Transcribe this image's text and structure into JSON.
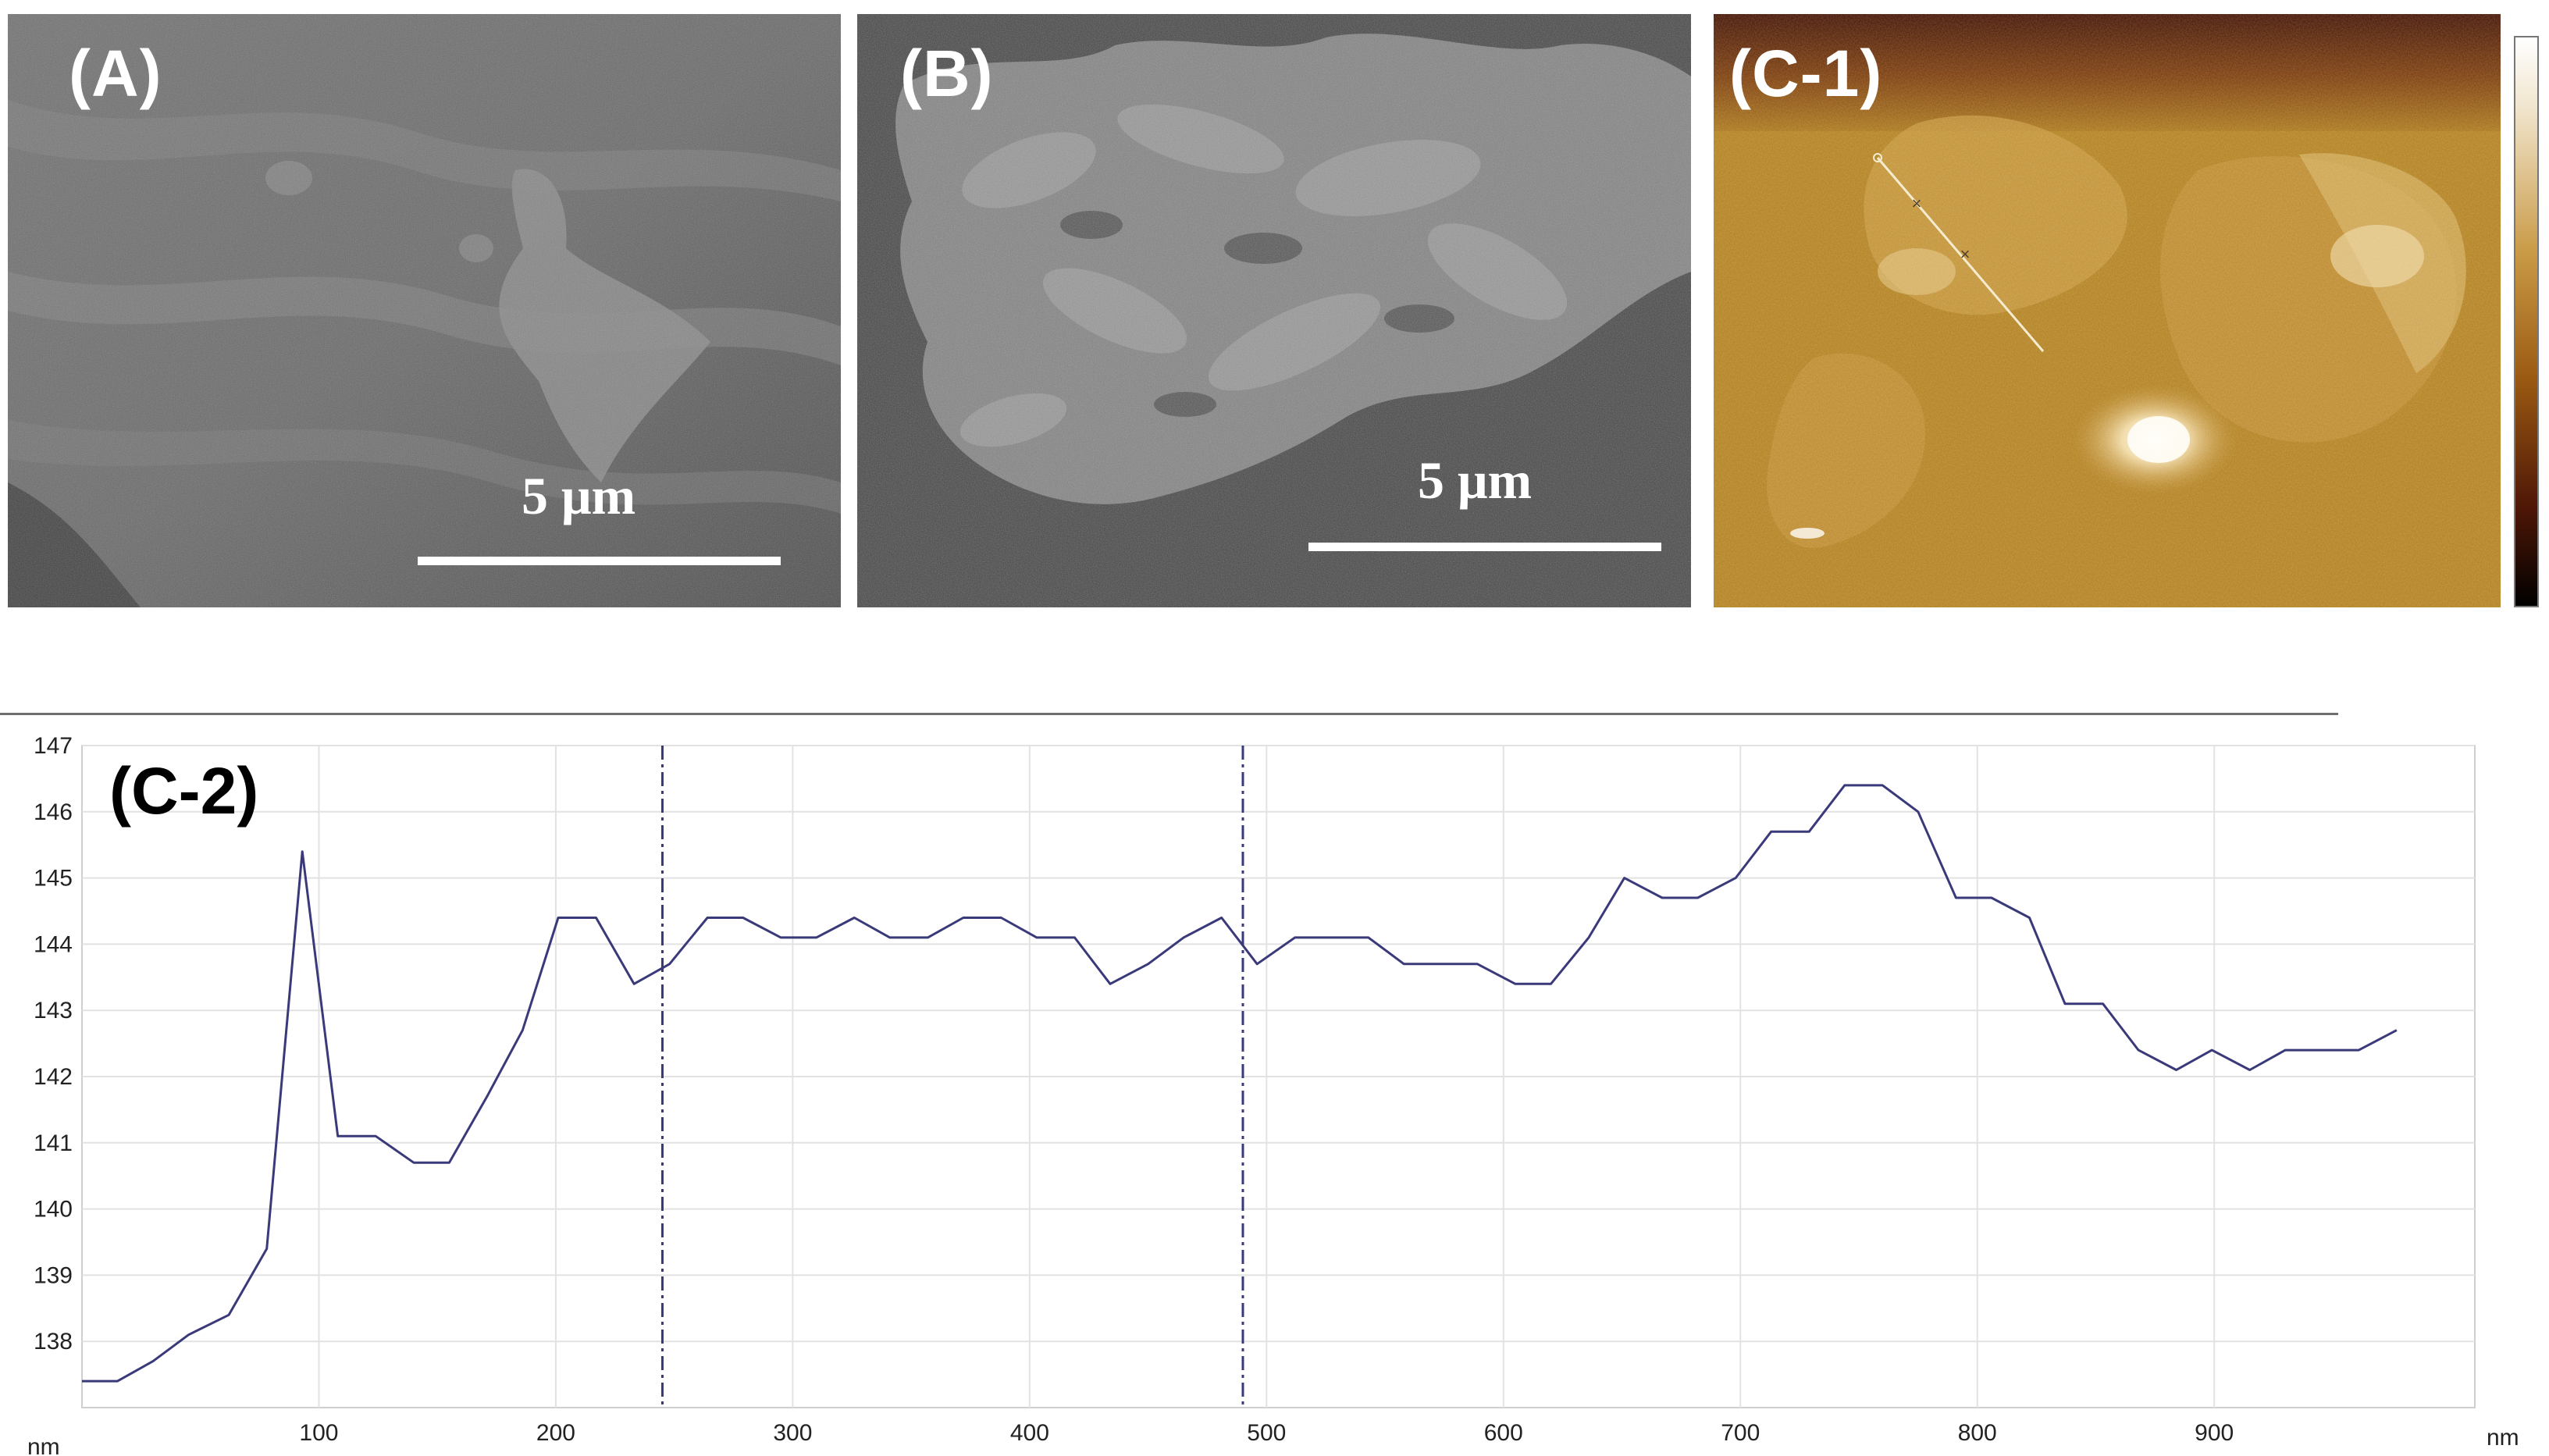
{
  "panels": {
    "a": {
      "label": "(A)",
      "scale_label": "5 μm"
    },
    "b": {
      "label": "(B)",
      "scale_label": "5 μm"
    },
    "c1": {
      "label": "(C-1)"
    },
    "c2": {
      "label": "(C-2)"
    }
  },
  "chart_data": {
    "type": "line",
    "title": "",
    "xlabel": "nm",
    "ylabel": "nm",
    "xlim": [
      0,
      1010
    ],
    "ylim": [
      137,
      147
    ],
    "x_ticks": [
      100,
      200,
      300,
      400,
      500,
      600,
      700,
      800,
      900
    ],
    "y_ticks": [
      138,
      139,
      140,
      141,
      142,
      143,
      144,
      145,
      146,
      147
    ],
    "grid": true,
    "markers": [
      245,
      490
    ],
    "series": [
      {
        "color": "#3a3a7a",
        "points": [
          [
            0,
            137.4
          ],
          [
            15,
            137.4
          ],
          [
            30,
            137.7
          ],
          [
            45,
            138.1
          ],
          [
            62,
            138.4
          ],
          [
            78,
            139.4
          ],
          [
            93,
            145.4
          ],
          [
            108,
            141.1
          ],
          [
            124,
            141.1
          ],
          [
            140,
            140.7
          ],
          [
            155,
            140.7
          ],
          [
            171,
            141.7
          ],
          [
            186,
            142.7
          ],
          [
            201,
            144.4
          ],
          [
            217,
            144.4
          ],
          [
            233,
            143.4
          ],
          [
            248,
            143.7
          ],
          [
            264,
            144.4
          ],
          [
            279,
            144.4
          ],
          [
            295,
            144.1
          ],
          [
            310,
            144.1
          ],
          [
            326,
            144.4
          ],
          [
            341,
            144.1
          ],
          [
            357,
            144.1
          ],
          [
            372,
            144.4
          ],
          [
            388,
            144.4
          ],
          [
            403,
            144.1
          ],
          [
            419,
            144.1
          ],
          [
            434,
            143.4
          ],
          [
            450,
            143.7
          ],
          [
            465,
            144.1
          ],
          [
            481,
            144.4
          ],
          [
            496,
            143.7
          ],
          [
            512,
            144.1
          ],
          [
            527,
            144.1
          ],
          [
            543,
            144.1
          ],
          [
            558,
            143.7
          ],
          [
            574,
            143.7
          ],
          [
            589,
            143.7
          ],
          [
            605,
            143.4
          ],
          [
            620,
            143.4
          ],
          [
            636,
            144.1
          ],
          [
            651,
            145.0
          ],
          [
            667,
            144.7
          ],
          [
            682,
            144.7
          ],
          [
            698,
            145.0
          ],
          [
            713,
            145.7
          ],
          [
            729,
            145.7
          ],
          [
            744,
            146.4
          ],
          [
            760,
            146.4
          ],
          [
            775,
            146.0
          ],
          [
            791,
            144.7
          ],
          [
            806,
            144.7
          ],
          [
            822,
            144.4
          ],
          [
            837,
            143.1
          ],
          [
            853,
            143.1
          ],
          [
            868,
            142.4
          ],
          [
            884,
            142.1
          ],
          [
            899,
            142.4
          ],
          [
            915,
            142.1
          ],
          [
            930,
            142.4
          ],
          [
            946,
            142.4
          ],
          [
            961,
            142.4
          ],
          [
            977,
            142.7
          ]
        ]
      }
    ]
  }
}
